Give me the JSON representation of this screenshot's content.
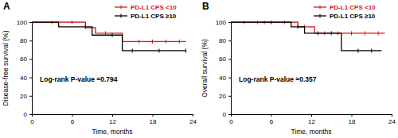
{
  "chart_data": [
    {
      "type": "line",
      "title": "A",
      "xlabel": "Time, months",
      "ylabel": "Disease-free survival (%)",
      "annotations": [
        "Log-rank P-value =0.794"
      ],
      "xlim": [
        0,
        24
      ],
      "xticks": [
        0,
        6,
        12,
        18,
        24
      ],
      "ylim": [
        0,
        100
      ],
      "yticks": [
        0,
        20,
        40,
        60,
        80,
        100
      ],
      "line_style": "step",
      "marker": "tick",
      "legend": "upper right",
      "series": [
        {
          "name": "PD-L1 CPS <10",
          "color": "#d7191c",
          "x": [
            0,
            8,
            9.5,
            13.5,
            23
          ],
          "values": [
            100,
            94,
            88,
            79,
            79
          ],
          "censored": [
            3,
            6,
            11,
            16,
            18,
            20,
            22
          ]
        },
        {
          "name": "PD-L1 CPS ≥10",
          "color": "#000000",
          "x": [
            0,
            4,
            9,
            13.5,
            23
          ],
          "values": [
            100,
            95,
            86,
            69,
            69
          ],
          "censored": [
            8,
            12,
            15,
            19,
            23
          ]
        }
      ]
    },
    {
      "type": "line",
      "title": "B",
      "xlabel": "Time, months",
      "ylabel": "Overall survival (%)",
      "annotations": [
        "Log-rank P-value =0.357"
      ],
      "xlim": [
        0,
        24
      ],
      "xticks": [
        0,
        6,
        12,
        18,
        24
      ],
      "ylim": [
        0,
        100
      ],
      "yticks": [
        0,
        20,
        40,
        60,
        80,
        100
      ],
      "line_style": "step",
      "marker": "tick",
      "legend": "upper right",
      "series": [
        {
          "name": "PD-L1 CPS <10",
          "color": "#d7191c",
          "x": [
            0,
            10,
            12.5,
            23
          ],
          "values": [
            100,
            95,
            88,
            88
          ],
          "censored": [
            2,
            4,
            5,
            8,
            11,
            14,
            16,
            18,
            20,
            22
          ]
        },
        {
          "name": "PD-L1 CPS ≥10",
          "color": "#000000",
          "x": [
            0,
            9,
            11,
            16.5,
            22.5
          ],
          "values": [
            100,
            95,
            88,
            69,
            69
          ],
          "censored": [
            6,
            10,
            13,
            15,
            19,
            21
          ]
        }
      ]
    }
  ]
}
